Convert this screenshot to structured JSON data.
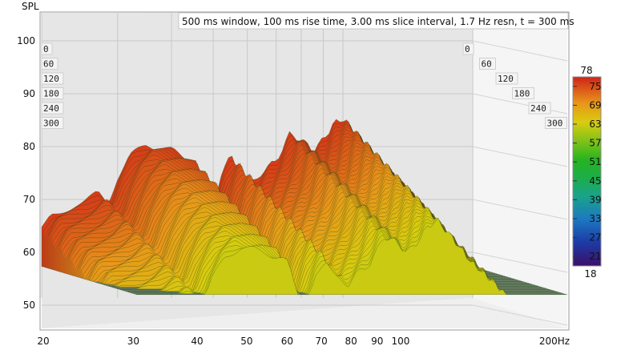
{
  "chart_data": {
    "type": "waterfall",
    "title": "500 ms window, 100 ms rise time, 3.00 ms slice interval, 1.7 Hz resn, t = 300 ms",
    "ylabel": "SPL",
    "xlabel": "",
    "x_unit": "Hz",
    "x_scale": "log",
    "xlim": [
      20,
      200
    ],
    "ylim": [
      45,
      105
    ],
    "x_ticks": [
      {
        "value": 20,
        "label": "20"
      },
      {
        "value": 30,
        "label": "30"
      },
      {
        "value": 40,
        "label": "40"
      },
      {
        "value": 50,
        "label": "50"
      },
      {
        "value": 60,
        "label": "60"
      },
      {
        "value": 70,
        "label": "70"
      },
      {
        "value": 80,
        "label": "80"
      },
      {
        "value": 90,
        "label": "90"
      },
      {
        "value": 100,
        "label": "100"
      },
      {
        "value": 200,
        "label": "200Hz"
      }
    ],
    "y_ticks": [
      50,
      60,
      70,
      80,
      90,
      100
    ],
    "time_axis_ms": [
      0,
      60,
      120,
      180,
      240,
      300
    ],
    "colorbar": {
      "min": 18,
      "max": 78,
      "ticks": [
        21,
        27,
        33,
        39,
        45,
        51,
        57,
        63,
        69,
        75
      ]
    },
    "spectrum_t0": [
      {
        "f": 20,
        "spl": 59
      },
      {
        "f": 21,
        "spl": 62
      },
      {
        "f": 23,
        "spl": 63
      },
      {
        "f": 25,
        "spl": 64
      },
      {
        "f": 27,
        "spl": 66
      },
      {
        "f": 28.5,
        "spl": 64
      },
      {
        "f": 30,
        "spl": 69
      },
      {
        "f": 32,
        "spl": 73
      },
      {
        "f": 35,
        "spl": 75
      },
      {
        "f": 40,
        "spl": 74
      },
      {
        "f": 45,
        "spl": 72
      },
      {
        "f": 48,
        "spl": 65
      },
      {
        "f": 50,
        "spl": 64
      },
      {
        "f": 52,
        "spl": 69
      },
      {
        "f": 55,
        "spl": 73
      },
      {
        "f": 58,
        "spl": 69
      },
      {
        "f": 62,
        "spl": 68
      },
      {
        "f": 65,
        "spl": 70
      },
      {
        "f": 70,
        "spl": 72
      },
      {
        "f": 75,
        "spl": 77
      },
      {
        "f": 80,
        "spl": 76
      },
      {
        "f": 85,
        "spl": 74
      },
      {
        "f": 90,
        "spl": 76
      },
      {
        "f": 95,
        "spl": 79
      },
      {
        "f": 100,
        "spl": 80
      },
      {
        "f": 110,
        "spl": 76
      },
      {
        "f": 120,
        "spl": 72
      },
      {
        "f": 140,
        "spl": 67
      },
      {
        "f": 160,
        "spl": 60
      },
      {
        "f": 180,
        "spl": 55
      },
      {
        "f": 200,
        "spl": 52
      }
    ],
    "style": {
      "wall_color": "#e5e5e5",
      "grid_color": "#c8c8c8",
      "frame_color": "#9a9a9a"
    }
  },
  "ui": {
    "selected_slice_ms": 300
  }
}
